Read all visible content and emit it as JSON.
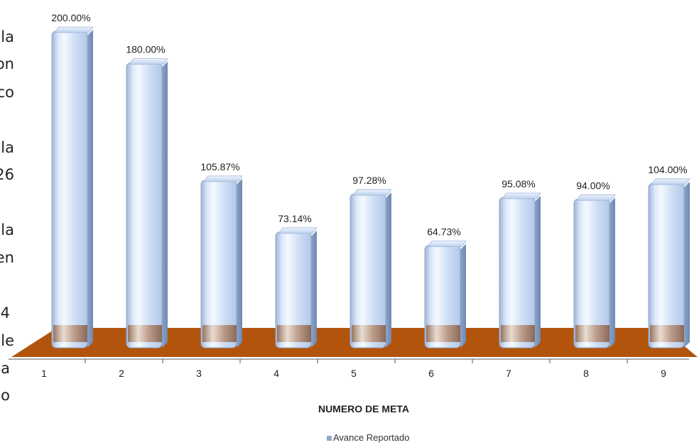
{
  "side_fragments": [
    "la",
    "on",
    "co",
    "la",
    "26",
    "la",
    "en",
    "4",
    "le",
    "la",
    "io"
  ],
  "chart_data": {
    "type": "bar",
    "categories": [
      "1",
      "2",
      "3",
      "4",
      "5",
      "6",
      "7",
      "8",
      "9"
    ],
    "series": [
      {
        "name": "Avance Reportado",
        "values": [
          200.0,
          180.0,
          105.87,
          73.14,
          97.28,
          64.73,
          95.08,
          94.0,
          104.0
        ],
        "labels": [
          "200.00%",
          "180.00%",
          "105.87%",
          "73.14%",
          "97.28%",
          "64.73%",
          "95.08%",
          "94.00%",
          "104.00%"
        ]
      }
    ],
    "xlabel": "NUMERO DE META",
    "ylabel": "",
    "ylim": [
      0,
      200
    ],
    "grid": false,
    "legend_position": "bottom",
    "colors": {
      "bar": "#c9daf3",
      "floor": "#b3540c",
      "bar_edge": "#8ea8cc"
    }
  }
}
